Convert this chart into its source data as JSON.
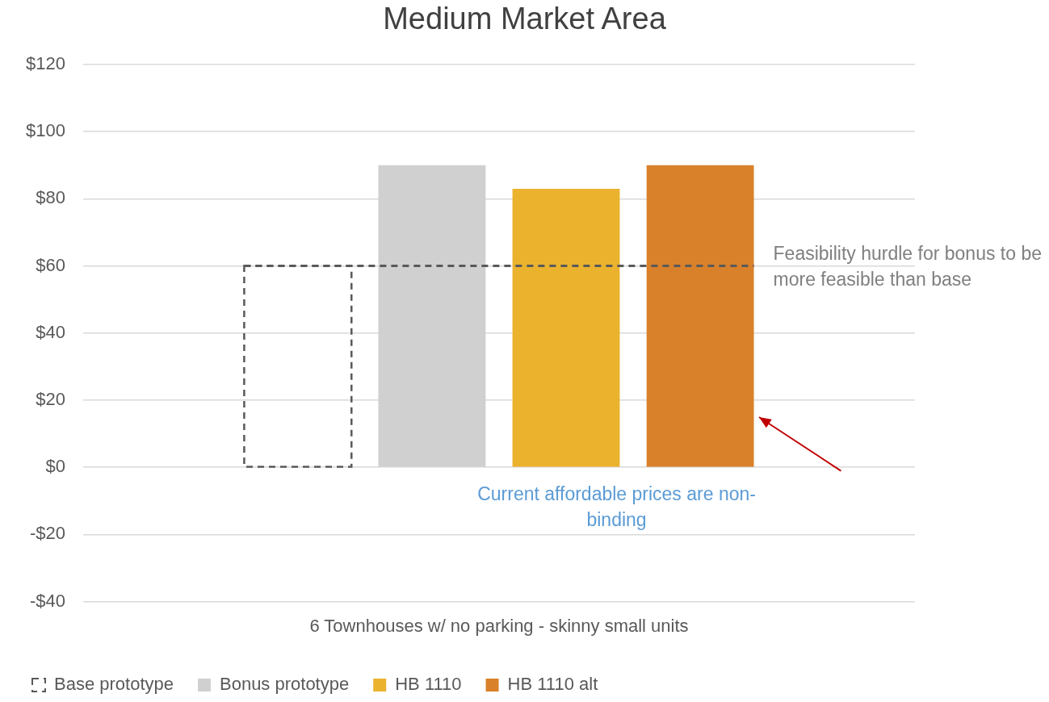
{
  "chart_data": {
    "type": "bar",
    "title": "Medium Market Area",
    "categories": [
      "6 Townhouses w/ no parking - skinny small units"
    ],
    "series": [
      {
        "name": "Base prototype",
        "color": "#595959",
        "values": [
          60
        ],
        "line_style": "dashed"
      },
      {
        "name": "Bonus prototype",
        "color": "#d0d0d0",
        "values": [
          90
        ]
      },
      {
        "name": "HB 1110",
        "color": "#ebb22e",
        "values": [
          83
        ]
      },
      {
        "name": "HB 1110 alt",
        "color": "#d9812a",
        "values": [
          90
        ]
      }
    ],
    "ylim": [
      -40,
      120
    ],
    "yticks": [
      {
        "value": -40,
        "label": "-$40"
      },
      {
        "value": -20,
        "label": "-$20"
      },
      {
        "value": 0,
        "label": "$0"
      },
      {
        "value": 20,
        "label": "$20"
      },
      {
        "value": 40,
        "label": "$40"
      },
      {
        "value": 60,
        "label": "$60"
      },
      {
        "value": 80,
        "label": "$80"
      },
      {
        "value": 100,
        "label": "$100"
      },
      {
        "value": 120,
        "label": "$120"
      }
    ],
    "ref_lines": [
      {
        "axis": "y",
        "value": 60,
        "label": "Feasibility hurdle for bonus to be more feasible than base",
        "color": "#595959",
        "line_style": "dashed"
      }
    ],
    "annotations": [
      "Current affordable prices are non-binding"
    ],
    "grid": "y",
    "legend": "bottom"
  }
}
